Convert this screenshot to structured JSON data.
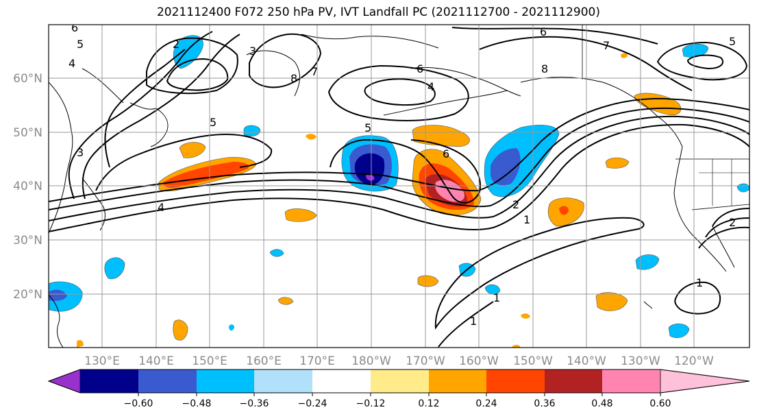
{
  "title": "2021112400 F072 250 hPa PV, IVT Landfall PC (2021112700 - 2021112900)",
  "lat_labels": [
    "60°N",
    "50°N",
    "40°N",
    "30°N",
    "20°N"
  ],
  "lon_labels": [
    "130°E",
    "140°E",
    "150°E",
    "160°E",
    "170°E",
    "180°W",
    "170°W",
    "160°W",
    "150°W",
    "140°W",
    "130°W",
    "120°W"
  ],
  "colorbar": {
    "ticks": [
      "−0.60",
      "−0.48",
      "−0.36",
      "−0.24",
      "−0.12",
      "0.12",
      "0.24",
      "0.36",
      "0.48",
      "0.60"
    ],
    "colors": [
      "#9932cc",
      "#00008b",
      "#3a5bd0",
      "#00bfff",
      "#b0e0fa",
      "#ffffff",
      "#ffeb8a",
      "#ffa500",
      "#ff4500",
      "#b22222",
      "#ff85b0",
      "#ffc0da"
    ]
  },
  "contour_labels": [
    "6",
    "5",
    "4",
    "2",
    "3",
    "8",
    "7",
    "6",
    "4",
    "5",
    "6",
    "2",
    "1",
    "1",
    "1",
    "6",
    "7",
    "8",
    "5",
    "1",
    "2",
    "5",
    "4",
    "3"
  ]
}
